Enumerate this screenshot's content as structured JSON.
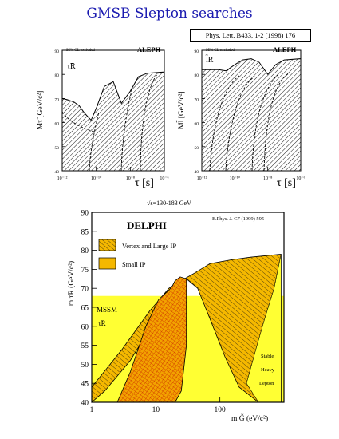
{
  "title": "GMSB Slepton searches",
  "reference_box": "Phys. Lett. B433, 1-2 (1998) 176",
  "colors": {
    "title": "#1a1ab0",
    "mssm_fill": "#ffff33",
    "vertex_fill": "#f5b800",
    "small_ip_grid": "#cc2200",
    "hatch": "#000000"
  },
  "chart_data": [
    {
      "type": "area",
      "panel": "ALEPH stau",
      "experiment": "ALEPH",
      "cl_note": "95% CL excluded",
      "particle": "τ̃R",
      "xlabel": "τ [s]",
      "ylabel": "Mτ̃ [GeV/c²]",
      "x_scale": "log",
      "xlim": [
        1e-12,
        1e-06
      ],
      "ylim": [
        40,
        90
      ],
      "x_ticks": [
        "10⁻¹²",
        "10⁻¹⁰",
        "10⁻⁸",
        "10⁻⁶"
      ],
      "y_ticks": [
        "40",
        "50",
        "60",
        "70",
        "80",
        "90"
      ],
      "boundary": {
        "x": [
          1e-12,
          2e-12,
          5e-12,
          1e-11,
          2e-11,
          5e-11,
          1e-10,
          3e-10,
          1e-09,
          3e-09,
          1e-08,
          3e-08,
          1e-07,
          1e-06
        ],
        "y": [
          70,
          69.5,
          68.5,
          67,
          64,
          61,
          66,
          75,
          77,
          68,
          73,
          79,
          80.5,
          81
        ]
      }
    },
    {
      "type": "area",
      "panel": "ALEPH selectron",
      "experiment": "ALEPH",
      "cl_note": "95% CL excluded",
      "particle": "l̃R",
      "xlabel": "τ [s]",
      "ylabel": "Ml̃ [GeV/c²]",
      "x_scale": "log",
      "xlim": [
        1e-12,
        1e-06
      ],
      "ylim": [
        40,
        90
      ],
      "x_ticks": [
        "10⁻¹²",
        "10⁻¹⁰",
        "10⁻⁸",
        "10⁻⁶"
      ],
      "y_ticks": [
        "40",
        "50",
        "60",
        "70",
        "80",
        "90"
      ],
      "boundary": {
        "x": [
          1e-12,
          1e-11,
          3e-11,
          1e-10,
          3e-10,
          1e-09,
          3e-09,
          1e-08,
          3e-08,
          1e-07,
          1e-06
        ],
        "y": [
          82,
          82,
          81.5,
          84,
          86,
          86.5,
          85,
          80,
          84,
          86,
          86.5
        ]
      }
    },
    {
      "type": "area",
      "panel": "DELPHI",
      "experiment": "DELPHI",
      "energy_label": "√s=130-183 GeV",
      "reference": "E.Phys. J. C7 (1999) 595",
      "xlabel": "m G̃ (eV/c²)",
      "ylabel": "m τ̃R (GeV/c²)",
      "x_scale": "log",
      "xlim": [
        1,
        1000
      ],
      "ylim": [
        40,
        90
      ],
      "x_ticks": [
        "1",
        "10",
        "100"
      ],
      "y_ticks": [
        "40",
        "45",
        "50",
        "55",
        "60",
        "65",
        "70",
        "75",
        "80",
        "85",
        "90"
      ],
      "legend": [
        "Vertex and Large IP",
        "Small IP"
      ],
      "region_labels": {
        "mssm": "MSSM",
        "mssm_particle": "τ̃R",
        "stable": [
          "Stable",
          "Heavy",
          "Lepton"
        ]
      },
      "mssm_limit": 68,
      "vertex_ip_region": {
        "x": [
          1,
          3,
          8,
          16,
          22,
          40,
          70,
          150,
          300,
          700,
          900,
          900,
          400,
          200,
          120,
          70,
          45,
          30,
          20,
          10,
          4,
          1.6,
          1
        ],
        "y": [
          44,
          54,
          64,
          70,
          71.5,
          74,
          76.5,
          77.5,
          78.2,
          78.8,
          79,
          40,
          40,
          44,
          52,
          62,
          70,
          72.5,
          72,
          62,
          51,
          43,
          40
        ]
      },
      "small_ip_region": {
        "x": [
          2.5,
          4,
          7,
          11,
          16,
          18,
          20,
          24,
          30,
          30,
          25,
          20,
          18,
          14,
          8,
          4
        ],
        "y": [
          40,
          48,
          60,
          67,
          69.5,
          70.5,
          72,
          73,
          72.5,
          55,
          43,
          40,
          40,
          40,
          40,
          40
        ]
      },
      "stable_lepton_region": {
        "x": [
          900,
          700,
          500,
          380,
          260,
          400,
          900
        ],
        "y": [
          79,
          70,
          62,
          55,
          45,
          40,
          40
        ]
      }
    }
  ]
}
